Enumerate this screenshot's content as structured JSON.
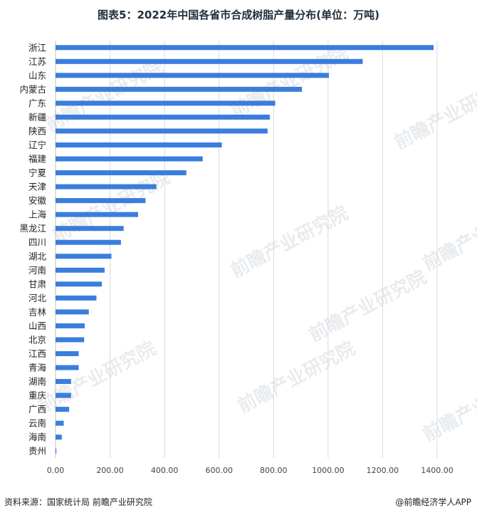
{
  "title": "图表5：2022年中国各省市合成树脂产量分布(单位：万吨)",
  "source": "资料来源：国家统计局 前瞻产业研究院",
  "brand": "@前瞻经济学人APP",
  "watermark": "前瞻产业研究院",
  "colors": {
    "bar": "#3b7ddd",
    "grid": "#d9d9d9",
    "axis_text": "#444444"
  },
  "chart_data": {
    "type": "bar",
    "orientation": "horizontal",
    "title": "图表5：2022年中国各省市合成树脂产量分布(单位：万吨)",
    "xlabel": "",
    "ylabel": "",
    "xlim": [
      0,
      1400
    ],
    "xticks": [
      "0.00",
      "200.00",
      "400.00",
      "600.00",
      "800.00",
      "1000.00",
      "1200.00",
      "1400.00"
    ],
    "grid": "vertical",
    "categories": [
      "浙江",
      "江苏",
      "山东",
      "内蒙古",
      "广东",
      "新疆",
      "陕西",
      "辽宁",
      "福建",
      "宁夏",
      "天津",
      "安徽",
      "上海",
      "黑龙江",
      "四川",
      "湖北",
      "河南",
      "甘肃",
      "河北",
      "吉林",
      "山西",
      "北京",
      "江西",
      "青海",
      "湖南",
      "重庆",
      "广西",
      "云南",
      "海南",
      "贵州"
    ],
    "values": [
      1387,
      1127,
      1003,
      904,
      806,
      786,
      778,
      610,
      540,
      480,
      370,
      330,
      303,
      250,
      240,
      205,
      180,
      170,
      150,
      122,
      107,
      105,
      85,
      85,
      57,
      57,
      50,
      30,
      23,
      3
    ]
  }
}
